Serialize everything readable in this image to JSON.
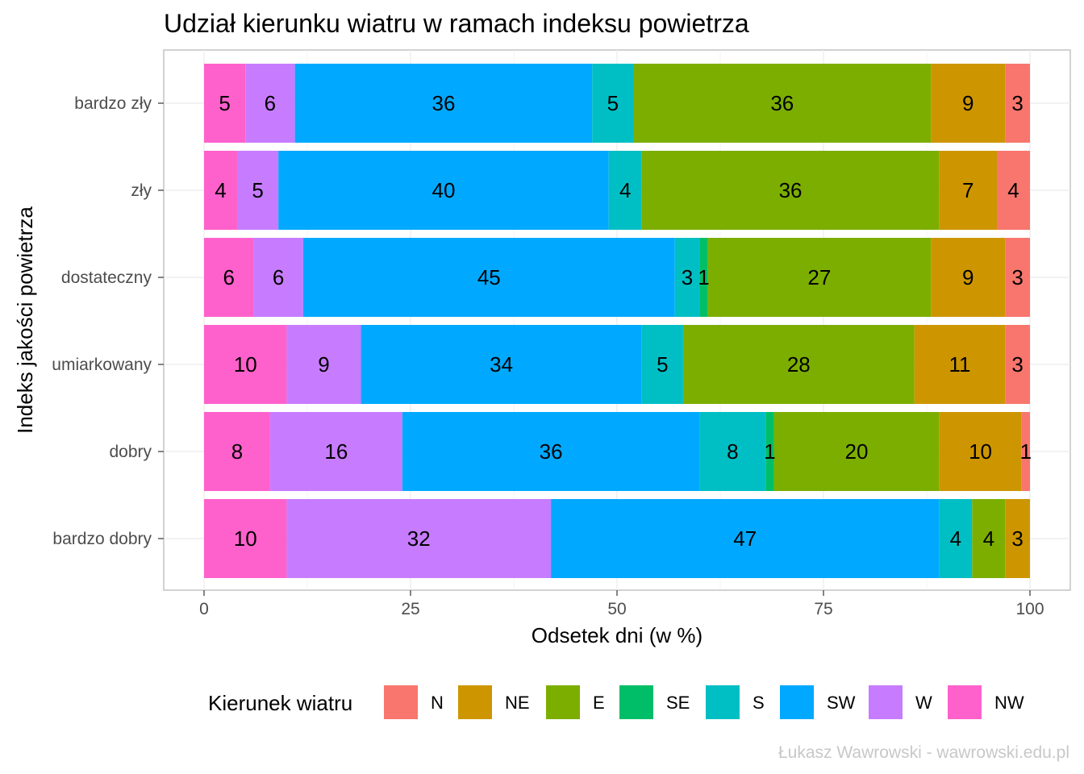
{
  "chart_data": {
    "type": "bar",
    "orientation": "horizontal",
    "stacked": true,
    "title": "Udział kierunku wiatru w ramach indeksu powietrza",
    "xlabel": "Odsetek dni (w %)",
    "ylabel": "Indeks jakości powietrza",
    "xlim": [
      0,
      100
    ],
    "xticks": [
      "0",
      "25",
      "50",
      "75",
      "100"
    ],
    "categories": [
      "bardzo zły",
      "zły",
      "dostateczny",
      "umiarkowany",
      "dobry",
      "bardzo dobry"
    ],
    "stack_order": [
      "NW",
      "W",
      "SW",
      "S",
      "SE",
      "E",
      "NE",
      "N"
    ],
    "series": [
      {
        "name": "N",
        "color": "#F8766D",
        "values": [
          3,
          4,
          3,
          3,
          1,
          0
        ]
      },
      {
        "name": "NE",
        "color": "#CD9600",
        "values": [
          9,
          7,
          9,
          11,
          10,
          3
        ]
      },
      {
        "name": "E",
        "color": "#7CAE00",
        "values": [
          36,
          36,
          27,
          28,
          20,
          4
        ]
      },
      {
        "name": "SE",
        "color": "#00BE67",
        "values": [
          0,
          0,
          1,
          0,
          1,
          0
        ]
      },
      {
        "name": "S",
        "color": "#00BFC4",
        "values": [
          5,
          4,
          3,
          5,
          8,
          4
        ]
      },
      {
        "name": "SW",
        "color": "#00A9FF",
        "values": [
          36,
          40,
          45,
          34,
          36,
          47
        ]
      },
      {
        "name": "W",
        "color": "#C77CFF",
        "values": [
          6,
          5,
          6,
          9,
          16,
          32
        ]
      },
      {
        "name": "NW",
        "color": "#FF61CC",
        "values": [
          5,
          4,
          6,
          10,
          8,
          10
        ]
      }
    ],
    "legend_title": "Kierunek wiatru",
    "legend_position": "bottom",
    "grid": true,
    "caption": "Łukasz Wawrowski - wawrowski.edu.pl"
  }
}
